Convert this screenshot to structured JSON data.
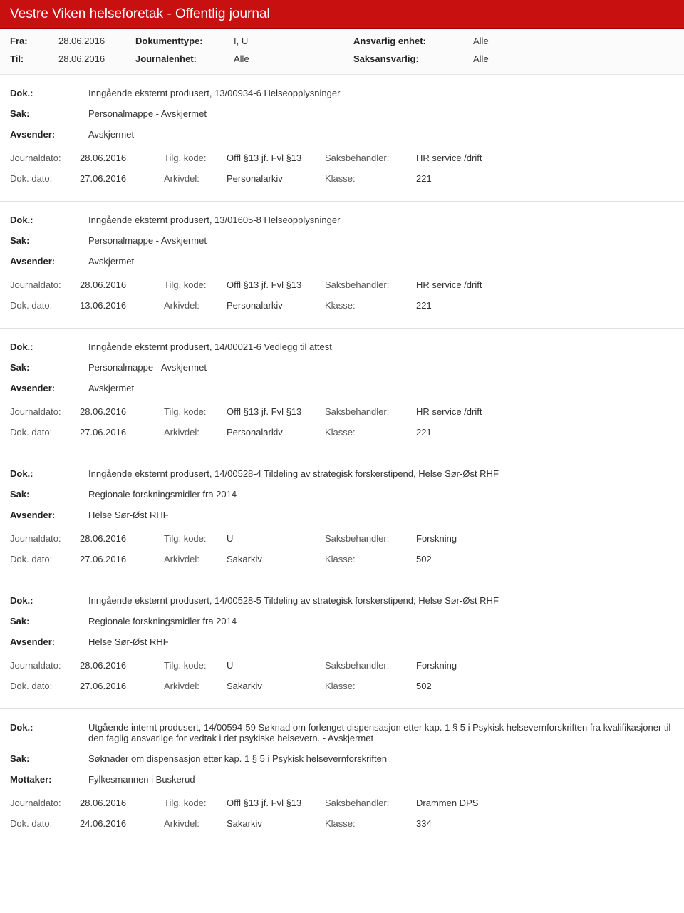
{
  "header": {
    "title": "Vestre Viken helseforetak - Offentlig journal"
  },
  "filter": {
    "fra_label": "Fra:",
    "fra_value": "28.06.2016",
    "til_label": "Til:",
    "til_value": "28.06.2016",
    "doktype_label": "Dokumenttype:",
    "doktype_value": "I, U",
    "journalenhet_label": "Journalenhet:",
    "journalenhet_value": "Alle",
    "ansvarlig_label": "Ansvarlig enhet:",
    "ansvarlig_value": "Alle",
    "saksansvarlig_label": "Saksansvarlig:",
    "saksansvarlig_value": "Alle"
  },
  "labels": {
    "dok": "Dok.:",
    "sak": "Sak:",
    "avsender": "Avsender:",
    "mottaker": "Mottaker:",
    "journaldato": "Journaldato:",
    "dokdato": "Dok. dato:",
    "tilgkode": "Tilg. kode:",
    "arkivdel": "Arkivdel:",
    "saksbehandler": "Saksbehandler:",
    "klasse": "Klasse:"
  },
  "entries": [
    {
      "dok": "Inngående eksternt produsert, 13/00934-6 Helseopplysninger",
      "sak": "Personalmappe - Avskjermet",
      "party_label": "Avsender:",
      "party_value": "Avskjermet",
      "journaldato": "28.06.2016",
      "dokdato": "27.06.2016",
      "tilgkode": "Offl §13 jf. Fvl §13",
      "arkivdel": "Personalarkiv",
      "saksbehandler": "HR service /drift",
      "klasse": "221"
    },
    {
      "dok": "Inngående eksternt produsert, 13/01605-8 Helseopplysninger",
      "sak": "Personalmappe - Avskjermet",
      "party_label": "Avsender:",
      "party_value": "Avskjermet",
      "journaldato": "28.06.2016",
      "dokdato": "13.06.2016",
      "tilgkode": "Offl §13 jf. Fvl §13",
      "arkivdel": "Personalarkiv",
      "saksbehandler": "HR service /drift",
      "klasse": "221"
    },
    {
      "dok": "Inngående eksternt produsert, 14/00021-6 Vedlegg til attest",
      "sak": "Personalmappe - Avskjermet",
      "party_label": "Avsender:",
      "party_value": "Avskjermet",
      "journaldato": "28.06.2016",
      "dokdato": "27.06.2016",
      "tilgkode": "Offl §13 jf. Fvl §13",
      "arkivdel": "Personalarkiv",
      "saksbehandler": "HR service /drift",
      "klasse": "221"
    },
    {
      "dok": "Inngående eksternt produsert, 14/00528-4 Tildeling av strategisk forskerstipend, Helse Sør-Øst RHF",
      "sak": "Regionale forskningsmidler fra 2014",
      "party_label": "Avsender:",
      "party_value": "Helse Sør-Øst RHF",
      "journaldato": "28.06.2016",
      "dokdato": "27.06.2016",
      "tilgkode": "U",
      "arkivdel": "Sakarkiv",
      "saksbehandler": "Forskning",
      "klasse": "502"
    },
    {
      "dok": "Inngående eksternt produsert, 14/00528-5 Tildeling av strategisk forskerstipend; Helse Sør-Øst RHF",
      "sak": "Regionale forskningsmidler fra 2014",
      "party_label": "Avsender:",
      "party_value": "Helse Sør-Øst RHF",
      "journaldato": "28.06.2016",
      "dokdato": "27.06.2016",
      "tilgkode": "U",
      "arkivdel": "Sakarkiv",
      "saksbehandler": "Forskning",
      "klasse": "502"
    },
    {
      "dok": "Utgående internt produsert, 14/00594-59 Søknad om forlenget dispensasjon etter kap. 1 § 5 i Psykisk helsevernforskriften fra kvalifikasjoner til den faglig ansvarlige for vedtak i det psykiske helsevern. - Avskjermet",
      "sak": "Søknader om dispensasjon etter kap. 1 § 5 i Psykisk helsevernforskriften",
      "party_label": "Mottaker:",
      "party_value": "Fylkesmannen i Buskerud",
      "journaldato": "28.06.2016",
      "dokdato": "24.06.2016",
      "tilgkode": "Offl §13 jf. Fvl §13",
      "arkivdel": "Sakarkiv",
      "saksbehandler": "Drammen DPS",
      "klasse": "334"
    }
  ]
}
